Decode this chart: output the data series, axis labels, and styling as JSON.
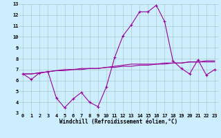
{
  "x": [
    0,
    1,
    2,
    3,
    4,
    5,
    6,
    7,
    8,
    9,
    10,
    11,
    12,
    13,
    14,
    15,
    16,
    17,
    18,
    19,
    20,
    21,
    22,
    23
  ],
  "line1": [
    6.6,
    6.1,
    6.7,
    6.8,
    4.4,
    3.5,
    4.3,
    4.9,
    4.0,
    3.6,
    5.4,
    8.1,
    10.1,
    11.1,
    12.3,
    12.3,
    12.9,
    11.4,
    7.8,
    7.1,
    6.6,
    7.9,
    6.5,
    7.0
  ],
  "line2": [
    6.6,
    6.6,
    6.7,
    6.8,
    6.9,
    7.0,
    7.0,
    7.1,
    7.1,
    7.1,
    7.2,
    7.2,
    7.3,
    7.3,
    7.4,
    7.4,
    7.5,
    7.5,
    7.6,
    7.6,
    7.7,
    7.7,
    7.8,
    7.8
  ],
  "line3": [
    6.6,
    6.6,
    6.7,
    6.8,
    6.9,
    6.9,
    7.0,
    7.0,
    7.1,
    7.1,
    7.2,
    7.3,
    7.4,
    7.5,
    7.5,
    7.5,
    7.5,
    7.6,
    7.6,
    7.6,
    7.7,
    7.7,
    7.7,
    7.7
  ],
  "color": "#990099",
  "bg_color": "#cceeff",
  "grid_color": "#aacccc",
  "ylim": [
    3,
    13
  ],
  "xlim": [
    -0.5,
    23.5
  ],
  "yticks": [
    3,
    4,
    5,
    6,
    7,
    8,
    9,
    10,
    11,
    12,
    13
  ],
  "xticks": [
    0,
    1,
    2,
    3,
    4,
    5,
    6,
    7,
    8,
    9,
    10,
    11,
    12,
    13,
    14,
    15,
    16,
    17,
    18,
    19,
    20,
    21,
    22,
    23
  ],
  "xlabel": "Windchill (Refroidissement éolien,°C)",
  "marker": "+"
}
